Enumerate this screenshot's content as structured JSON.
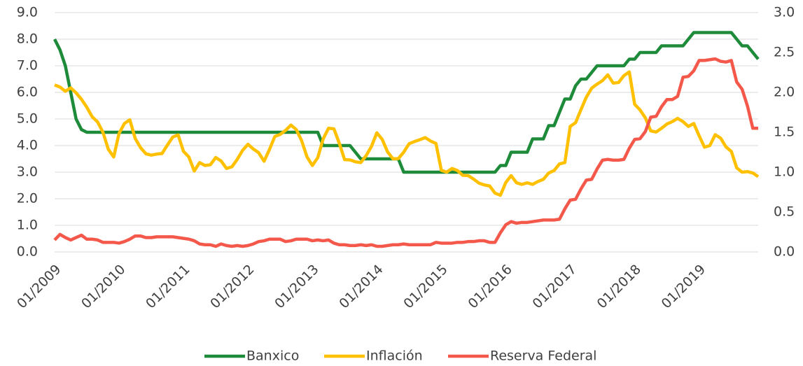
{
  "chart_data": {
    "type": "line",
    "categories": [
      "01/2009",
      null,
      null,
      null,
      null,
      null,
      null,
      null,
      null,
      null,
      null,
      null,
      "01/2010",
      null,
      null,
      null,
      null,
      null,
      null,
      null,
      null,
      null,
      null,
      null,
      "01/2011",
      null,
      null,
      null,
      null,
      null,
      null,
      null,
      null,
      null,
      null,
      null,
      "01/2012",
      null,
      null,
      null,
      null,
      null,
      null,
      null,
      null,
      null,
      null,
      null,
      "01/2013",
      null,
      null,
      null,
      null,
      null,
      null,
      null,
      null,
      null,
      null,
      null,
      "01/2014",
      null,
      null,
      null,
      null,
      null,
      null,
      null,
      null,
      null,
      null,
      null,
      "01/2015",
      null,
      null,
      null,
      null,
      null,
      null,
      null,
      null,
      null,
      null,
      null,
      "01/2016",
      null,
      null,
      null,
      null,
      null,
      null,
      null,
      null,
      null,
      null,
      null,
      "01/2017",
      null,
      null,
      null,
      null,
      null,
      null,
      null,
      null,
      null,
      null,
      null,
      "01/2018",
      null,
      null,
      null,
      null,
      null,
      null,
      null,
      null,
      null,
      null,
      null,
      "01/2019",
      null,
      null,
      null,
      null,
      null,
      null,
      null,
      null,
      null,
      null,
      null
    ],
    "series": [
      {
        "name": "Banxico",
        "color": "#1e8b3a",
        "values": [
          8.0,
          7.6,
          7.0,
          6.0,
          5.0,
          4.6,
          4.5,
          4.5,
          4.5,
          4.5,
          4.5,
          4.5,
          4.5,
          4.5,
          4.5,
          4.5,
          4.5,
          4.5,
          4.5,
          4.5,
          4.5,
          4.5,
          4.5,
          4.5,
          4.5,
          4.5,
          4.5,
          4.5,
          4.5,
          4.5,
          4.5,
          4.5,
          4.5,
          4.5,
          4.5,
          4.5,
          4.5,
          4.5,
          4.5,
          4.5,
          4.5,
          4.5,
          4.5,
          4.5,
          4.5,
          4.5,
          4.5,
          4.5,
          4.5,
          4.5,
          4.0,
          4.0,
          4.0,
          4.0,
          4.0,
          4.0,
          3.75,
          3.5,
          3.5,
          3.5,
          3.5,
          3.5,
          3.5,
          3.5,
          3.5,
          3.0,
          3.0,
          3.0,
          3.0,
          3.0,
          3.0,
          3.0,
          3.0,
          3.0,
          3.0,
          3.0,
          3.0,
          3.0,
          3.0,
          3.0,
          3.0,
          3.0,
          3.0,
          3.25,
          3.25,
          3.75,
          3.75,
          3.75,
          3.75,
          4.25,
          4.25,
          4.25,
          4.75,
          4.75,
          5.25,
          5.75,
          5.75,
          6.25,
          6.5,
          6.5,
          6.75,
          7.0,
          7.0,
          7.0,
          7.0,
          7.0,
          7.0,
          7.25,
          7.25,
          7.5,
          7.5,
          7.5,
          7.5,
          7.75,
          7.75,
          7.75,
          7.75,
          7.75,
          8.0,
          8.25,
          8.25,
          8.25,
          8.25,
          8.25,
          8.25,
          8.25,
          8.25,
          8.0,
          7.75,
          7.75,
          7.5,
          7.25
        ]
      },
      {
        "name": "Inflación",
        "color": "#ffc000",
        "values": [
          6.28,
          6.2,
          6.04,
          6.17,
          5.98,
          5.74,
          5.44,
          5.08,
          4.89,
          4.5,
          3.86,
          3.57,
          4.46,
          4.83,
          4.97,
          4.27,
          3.92,
          3.69,
          3.64,
          3.68,
          3.7,
          4.02,
          4.32,
          4.4,
          3.78,
          3.57,
          3.04,
          3.36,
          3.25,
          3.28,
          3.55,
          3.42,
          3.14,
          3.2,
          3.48,
          3.82,
          4.05,
          3.87,
          3.73,
          3.41,
          3.85,
          4.34,
          4.42,
          4.57,
          4.77,
          4.6,
          4.18,
          3.57,
          3.25,
          3.55,
          4.25,
          4.65,
          4.63,
          4.09,
          3.47,
          3.46,
          3.39,
          3.36,
          3.62,
          3.97,
          4.48,
          4.23,
          3.76,
          3.5,
          3.51,
          3.75,
          4.07,
          4.15,
          4.22,
          4.3,
          4.17,
          4.08,
          3.07,
          3.0,
          3.14,
          3.06,
          2.88,
          2.87,
          2.74,
          2.59,
          2.52,
          2.48,
          2.21,
          2.13,
          2.61,
          2.87,
          2.6,
          2.54,
          2.6,
          2.54,
          2.65,
          2.73,
          2.97,
          3.06,
          3.31,
          3.36,
          4.72,
          4.86,
          5.35,
          5.82,
          6.16,
          6.31,
          6.44,
          6.66,
          6.35,
          6.37,
          6.63,
          6.77,
          5.55,
          5.34,
          5.04,
          4.55,
          4.51,
          4.65,
          4.81,
          4.9,
          5.02,
          4.9,
          4.72,
          4.83,
          4.37,
          3.94,
          4.0,
          4.41,
          4.28,
          3.95,
          3.78,
          3.16,
          3.0,
          3.02,
          2.97,
          2.83
        ]
      },
      {
        "name": "Reserva Federal",
        "color": "#f4584a",
        "axis": "y2",
        "values": [
          0.15,
          0.22,
          0.18,
          0.15,
          0.18,
          0.21,
          0.16,
          0.16,
          0.15,
          0.12,
          0.12,
          0.12,
          0.11,
          0.13,
          0.16,
          0.2,
          0.2,
          0.18,
          0.18,
          0.19,
          0.19,
          0.19,
          0.19,
          0.18,
          0.17,
          0.16,
          0.14,
          0.1,
          0.09,
          0.09,
          0.07,
          0.1,
          0.08,
          0.07,
          0.08,
          0.07,
          0.08,
          0.1,
          0.13,
          0.14,
          0.16,
          0.16,
          0.16,
          0.13,
          0.14,
          0.16,
          0.16,
          0.16,
          0.14,
          0.15,
          0.14,
          0.15,
          0.11,
          0.09,
          0.09,
          0.08,
          0.08,
          0.09,
          0.08,
          0.09,
          0.07,
          0.07,
          0.08,
          0.09,
          0.09,
          0.1,
          0.09,
          0.09,
          0.09,
          0.09,
          0.09,
          0.12,
          0.11,
          0.11,
          0.11,
          0.12,
          0.12,
          0.13,
          0.13,
          0.14,
          0.14,
          0.12,
          0.12,
          0.24,
          0.34,
          0.38,
          0.36,
          0.37,
          0.37,
          0.38,
          0.39,
          0.4,
          0.4,
          0.4,
          0.41,
          0.54,
          0.65,
          0.66,
          0.79,
          0.9,
          0.91,
          1.04,
          1.15,
          1.16,
          1.15,
          1.15,
          1.16,
          1.3,
          1.41,
          1.42,
          1.51,
          1.69,
          1.7,
          1.82,
          1.91,
          1.91,
          1.95,
          2.19,
          2.2,
          2.27,
          2.4,
          2.4,
          2.41,
          2.42,
          2.39,
          2.38,
          2.4,
          2.13,
          2.04,
          1.83,
          1.55,
          1.55
        ]
      }
    ],
    "ylim": [
      0,
      9
    ],
    "yticks": [
      {
        "value": 0,
        "label": "0.0"
      },
      {
        "value": 1,
        "label": "1.0"
      },
      {
        "value": 2,
        "label": "2.0"
      },
      {
        "value": 3,
        "label": "3.0"
      },
      {
        "value": 4,
        "label": "4.0"
      },
      {
        "value": 5,
        "label": "5.0"
      },
      {
        "value": 6,
        "label": "6.0"
      },
      {
        "value": 7,
        "label": "7.0"
      },
      {
        "value": 8,
        "label": "8.0"
      },
      {
        "value": 9,
        "label": "9.0"
      }
    ],
    "y2lim": [
      0,
      3
    ],
    "y2ticks": [
      {
        "value": 0,
        "label": "0.0"
      },
      {
        "value": 0.5,
        "label": "0.5"
      },
      {
        "value": 1,
        "label": "1.0"
      },
      {
        "value": 1.5,
        "label": "1.5"
      },
      {
        "value": 2,
        "label": "2.0"
      },
      {
        "value": 2.5,
        "label": "2.5"
      },
      {
        "value": 3,
        "label": "3.0"
      }
    ],
    "grid": true,
    "legend": "bottom"
  }
}
